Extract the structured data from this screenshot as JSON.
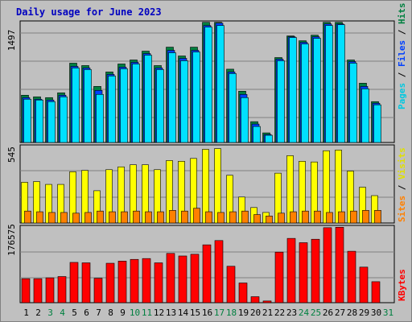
{
  "title": "Daily usage for June 2023",
  "colors": {
    "background": "#C0C0C0",
    "plot_background": "#C0C0C0",
    "grid": "#808080",
    "title": "#0000C0",
    "hits": "#008040",
    "files": "#0040FF",
    "pages": "#00E0FF",
    "visits": "#FFFF00",
    "sites": "#FF8000",
    "kbytes": "#FF0000",
    "weekend_day": "#008040",
    "weekday": "#000000"
  },
  "chart_data": [
    {
      "type": "bar",
      "panel": "top",
      "y_max_label": "1497",
      "ylim": [
        0,
        1497
      ],
      "legend_labels": [
        "Pages",
        "Files",
        "Hits"
      ],
      "categories": [
        "1",
        "2",
        "3",
        "4",
        "5",
        "6",
        "7",
        "8",
        "9",
        "10",
        "11",
        "12",
        "13",
        "14",
        "15",
        "16",
        "17",
        "18",
        "19",
        "20",
        "21",
        "22",
        "23",
        "24",
        "25",
        "26",
        "27",
        "28",
        "29",
        "30",
        "31"
      ],
      "series": [
        {
          "name": "Hits",
          "values": [
            590,
            570,
            560,
            620,
            990,
            960,
            700,
            880,
            980,
            1030,
            1140,
            960,
            1190,
            1080,
            1190,
            1500,
            1500,
            915,
            640,
            260,
            120,
            1060,
            1330,
            1270,
            1340,
            1500,
            1500,
            1030,
            740,
            510,
            0
          ]
        },
        {
          "name": "Files",
          "values": [
            560,
            540,
            530,
            590,
            950,
            930,
            650,
            850,
            940,
            1000,
            1110,
            930,
            1150,
            1050,
            1150,
            1460,
            1490,
            880,
            600,
            230,
            100,
            1040,
            1320,
            1250,
            1320,
            1480,
            1480,
            1010,
            700,
            490,
            0
          ]
        },
        {
          "name": "Pages",
          "values": [
            540,
            530,
            510,
            570,
            930,
            910,
            600,
            830,
            920,
            980,
            1090,
            910,
            1120,
            1020,
            1130,
            1440,
            1460,
            860,
            560,
            200,
            90,
            1020,
            1310,
            1230,
            1300,
            1460,
            1470,
            990,
            670,
            470,
            0
          ]
        }
      ]
    },
    {
      "type": "bar",
      "panel": "middle",
      "y_max_label": "545",
      "ylim": [
        0,
        545
      ],
      "legend_labels": [
        "Sites",
        "Visits"
      ],
      "categories": [
        "1",
        "2",
        "3",
        "4",
        "5",
        "6",
        "7",
        "8",
        "9",
        "10",
        "11",
        "12",
        "13",
        "14",
        "15",
        "16",
        "17",
        "18",
        "19",
        "20",
        "21",
        "22",
        "23",
        "24",
        "25",
        "26",
        "27",
        "28",
        "29",
        "30",
        "31"
      ],
      "series": [
        {
          "name": "Visits",
          "values": [
            290,
            295,
            275,
            275,
            365,
            375,
            230,
            380,
            400,
            415,
            415,
            380,
            445,
            440,
            460,
            525,
            530,
            340,
            185,
            110,
            75,
            355,
            480,
            440,
            435,
            515,
            520,
            370,
            255,
            195,
            0
          ]
        },
        {
          "name": "Sites",
          "values": [
            85,
            80,
            75,
            75,
            70,
            75,
            85,
            80,
            80,
            85,
            80,
            80,
            90,
            85,
            105,
            80,
            75,
            80,
            85,
            60,
            50,
            70,
            80,
            85,
            85,
            75,
            80,
            85,
            90,
            90,
            0
          ]
        }
      ]
    },
    {
      "type": "bar",
      "panel": "bottom",
      "y_max_label": "176575",
      "ylim": [
        0,
        176575
      ],
      "legend_labels": [
        "KBytes"
      ],
      "categories": [
        "1",
        "2",
        "3",
        "4",
        "5",
        "6",
        "7",
        "8",
        "9",
        "10",
        "11",
        "12",
        "13",
        "14",
        "15",
        "16",
        "17",
        "18",
        "19",
        "20",
        "21",
        "22",
        "23",
        "24",
        "25",
        "26",
        "27",
        "28",
        "29",
        "30",
        "31"
      ],
      "series": [
        {
          "name": "KBytes",
          "values": [
            56000,
            56000,
            58000,
            61000,
            94000,
            93000,
            57000,
            92000,
            97000,
            101000,
            103000,
            93000,
            115000,
            109000,
            113000,
            135000,
            145000,
            85000,
            46000,
            14000,
            4000,
            118000,
            150000,
            140000,
            148000,
            175000,
            176000,
            120000,
            83000,
            49000,
            0
          ]
        }
      ]
    }
  ]
}
